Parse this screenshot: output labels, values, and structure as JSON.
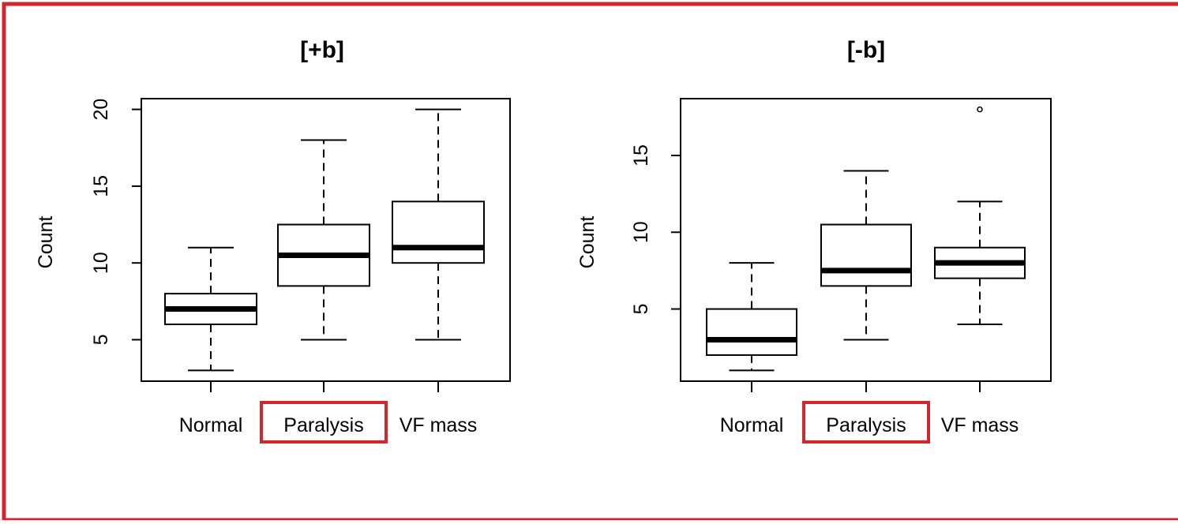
{
  "chart_data": [
    {
      "type": "box",
      "title": "[+b]",
      "ylabel": "Count",
      "xlabel": "",
      "ylim": [
        2.3,
        20.7
      ],
      "yticks": [
        5,
        10,
        15,
        20
      ],
      "categories": [
        "Normal",
        "Paralysis",
        "VF mass"
      ],
      "highlighted_category": "Paralysis",
      "highlight_color": "#d0282e",
      "boxes": [
        {
          "category": "Normal",
          "whisker_low": 3,
          "q1": 6.0,
          "median": 7.0,
          "q3": 8.0,
          "whisker_high": 11,
          "outliers": []
        },
        {
          "category": "Paralysis",
          "whisker_low": 5,
          "q1": 8.5,
          "median": 10.5,
          "q3": 12.5,
          "whisker_high": 18,
          "outliers": []
        },
        {
          "category": "VF mass",
          "whisker_low": 5,
          "q1": 10.0,
          "median": 11.0,
          "q3": 14.0,
          "whisker_high": 20,
          "outliers": []
        }
      ],
      "grid": false,
      "legend": "none"
    },
    {
      "type": "box",
      "title": "[-b]",
      "ylabel": "Count",
      "xlabel": "",
      "ylim": [
        0.3,
        18.7
      ],
      "yticks": [
        5,
        10,
        15
      ],
      "categories": [
        "Normal",
        "Paralysis",
        "VF mass"
      ],
      "highlighted_category": "Paralysis",
      "highlight_color": "#d0282e",
      "boxes": [
        {
          "category": "Normal",
          "whisker_low": 1,
          "q1": 2.0,
          "median": 3.0,
          "q3": 5.0,
          "whisker_high": 8,
          "outliers": []
        },
        {
          "category": "Paralysis",
          "whisker_low": 3,
          "q1": 6.5,
          "median": 7.5,
          "q3": 10.5,
          "whisker_high": 14,
          "outliers": []
        },
        {
          "category": "VF mass",
          "whisker_low": 4,
          "q1": 7.0,
          "median": 8.0,
          "q3": 9.0,
          "whisker_high": 12,
          "outliers": [
            18
          ]
        }
      ],
      "grid": false,
      "legend": "none"
    }
  ],
  "frame": {
    "border_color": "#d0282e"
  }
}
